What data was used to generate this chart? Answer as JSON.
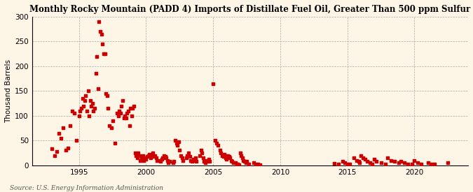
{
  "title": "Monthly Rocky Mountain (PADD 4) Imports of Distillate Fuel Oil, Greater Than 500 ppm Sulfur",
  "ylabel": "Thousand Barrels",
  "source": "Source: U.S. Energy Information Administration",
  "background_color": "#fdf5e6",
  "dot_color": "#cc0000",
  "xlim": [
    1991.5,
    2024
  ],
  "ylim": [
    0,
    300
  ],
  "yticks": [
    0,
    50,
    100,
    150,
    200,
    250,
    300
  ],
  "xticks": [
    1995,
    2000,
    2005,
    2010,
    2015,
    2020
  ],
  "data": [
    [
      1993.0,
      33
    ],
    [
      1993.17,
      20
    ],
    [
      1993.33,
      28
    ],
    [
      1993.5,
      65
    ],
    [
      1993.67,
      55
    ],
    [
      1993.83,
      75
    ],
    [
      1994.0,
      30
    ],
    [
      1994.17,
      35
    ],
    [
      1994.33,
      80
    ],
    [
      1994.5,
      110
    ],
    [
      1994.67,
      105
    ],
    [
      1994.83,
      50
    ],
    [
      1995.0,
      100
    ],
    [
      1995.08,
      110
    ],
    [
      1995.17,
      115
    ],
    [
      1995.25,
      135
    ],
    [
      1995.33,
      120
    ],
    [
      1995.42,
      130
    ],
    [
      1995.5,
      140
    ],
    [
      1995.58,
      110
    ],
    [
      1995.67,
      150
    ],
    [
      1995.75,
      100
    ],
    [
      1995.83,
      130
    ],
    [
      1995.92,
      120
    ],
    [
      1996.0,
      125
    ],
    [
      1996.08,
      110
    ],
    [
      1996.17,
      115
    ],
    [
      1996.25,
      185
    ],
    [
      1996.33,
      220
    ],
    [
      1996.42,
      155
    ],
    [
      1996.5,
      290
    ],
    [
      1996.58,
      270
    ],
    [
      1996.67,
      265
    ],
    [
      1996.75,
      245
    ],
    [
      1996.83,
      225
    ],
    [
      1996.92,
      225
    ],
    [
      1997.0,
      145
    ],
    [
      1997.08,
      140
    ],
    [
      1997.17,
      115
    ],
    [
      1997.25,
      80
    ],
    [
      1997.42,
      75
    ],
    [
      1997.5,
      90
    ],
    [
      1997.67,
      45
    ],
    [
      1997.83,
      105
    ],
    [
      1997.92,
      100
    ],
    [
      1998.0,
      110
    ],
    [
      1998.08,
      105
    ],
    [
      1998.17,
      120
    ],
    [
      1998.25,
      130
    ],
    [
      1998.33,
      95
    ],
    [
      1998.42,
      100
    ],
    [
      1998.5,
      95
    ],
    [
      1998.58,
      105
    ],
    [
      1998.67,
      110
    ],
    [
      1998.75,
      80
    ],
    [
      1998.83,
      115
    ],
    [
      1998.92,
      100
    ],
    [
      1999.0,
      115
    ],
    [
      1999.08,
      120
    ],
    [
      1999.17,
      25
    ],
    [
      1999.25,
      20
    ],
    [
      1999.33,
      15
    ],
    [
      1999.42,
      25
    ],
    [
      1999.5,
      20
    ],
    [
      1999.58,
      10
    ],
    [
      1999.67,
      15
    ],
    [
      1999.75,
      20
    ],
    [
      1999.83,
      10
    ],
    [
      1999.92,
      15
    ],
    [
      2000.0,
      12
    ],
    [
      2000.08,
      18
    ],
    [
      2000.17,
      20
    ],
    [
      2000.25,
      22
    ],
    [
      2000.33,
      15
    ],
    [
      2000.42,
      20
    ],
    [
      2000.5,
      25
    ],
    [
      2000.58,
      18
    ],
    [
      2000.67,
      20
    ],
    [
      2000.75,
      15
    ],
    [
      2000.83,
      10
    ],
    [
      2001.0,
      10
    ],
    [
      2001.08,
      8
    ],
    [
      2001.17,
      12
    ],
    [
      2001.25,
      15
    ],
    [
      2001.33,
      20
    ],
    [
      2001.42,
      18
    ],
    [
      2001.5,
      15
    ],
    [
      2001.58,
      10
    ],
    [
      2001.67,
      5
    ],
    [
      2001.75,
      8
    ],
    [
      2002.0,
      5
    ],
    [
      2002.08,
      8
    ],
    [
      2002.17,
      50
    ],
    [
      2002.25,
      45
    ],
    [
      2002.33,
      40
    ],
    [
      2002.42,
      48
    ],
    [
      2002.5,
      30
    ],
    [
      2002.58,
      20
    ],
    [
      2002.67,
      15
    ],
    [
      2002.75,
      10
    ],
    [
      2003.0,
      15
    ],
    [
      2003.08,
      20
    ],
    [
      2003.17,
      25
    ],
    [
      2003.25,
      18
    ],
    [
      2003.33,
      10
    ],
    [
      2003.42,
      8
    ],
    [
      2003.5,
      12
    ],
    [
      2003.58,
      10
    ],
    [
      2003.67,
      15
    ],
    [
      2003.75,
      8
    ],
    [
      2004.0,
      20
    ],
    [
      2004.08,
      30
    ],
    [
      2004.17,
      25
    ],
    [
      2004.25,
      15
    ],
    [
      2004.33,
      8
    ],
    [
      2004.42,
      5
    ],
    [
      2004.5,
      10
    ],
    [
      2004.58,
      8
    ],
    [
      2004.67,
      12
    ],
    [
      2004.75,
      8
    ],
    [
      2005.0,
      165
    ],
    [
      2005.17,
      50
    ],
    [
      2005.25,
      45
    ],
    [
      2005.33,
      40
    ],
    [
      2005.5,
      30
    ],
    [
      2005.58,
      25
    ],
    [
      2005.67,
      20
    ],
    [
      2005.75,
      18
    ],
    [
      2005.83,
      22
    ],
    [
      2005.92,
      15
    ],
    [
      2006.0,
      12
    ],
    [
      2006.08,
      20
    ],
    [
      2006.17,
      18
    ],
    [
      2006.25,
      15
    ],
    [
      2006.33,
      10
    ],
    [
      2006.42,
      8
    ],
    [
      2006.5,
      5
    ],
    [
      2006.67,
      5
    ],
    [
      2006.75,
      3
    ],
    [
      2006.83,
      2
    ],
    [
      2006.92,
      1
    ],
    [
      2007.0,
      25
    ],
    [
      2007.08,
      20
    ],
    [
      2007.17,
      15
    ],
    [
      2007.25,
      10
    ],
    [
      2007.33,
      8
    ],
    [
      2007.42,
      5
    ],
    [
      2007.5,
      8
    ],
    [
      2007.67,
      3
    ],
    [
      2008.0,
      5
    ],
    [
      2008.17,
      3
    ],
    [
      2008.33,
      2
    ],
    [
      2008.5,
      1
    ],
    [
      2014.0,
      4
    ],
    [
      2014.33,
      2
    ],
    [
      2014.67,
      8
    ],
    [
      2014.83,
      5
    ],
    [
      2015.0,
      3
    ],
    [
      2015.17,
      2
    ],
    [
      2015.5,
      15
    ],
    [
      2015.67,
      10
    ],
    [
      2015.83,
      8
    ],
    [
      2015.92,
      5
    ],
    [
      2016.0,
      20
    ],
    [
      2016.17,
      15
    ],
    [
      2016.33,
      12
    ],
    [
      2016.5,
      8
    ],
    [
      2016.67,
      5
    ],
    [
      2016.83,
      3
    ],
    [
      2017.0,
      12
    ],
    [
      2017.17,
      8
    ],
    [
      2017.5,
      5
    ],
    [
      2017.83,
      3
    ],
    [
      2018.0,
      15
    ],
    [
      2018.25,
      10
    ],
    [
      2018.5,
      8
    ],
    [
      2018.83,
      5
    ],
    [
      2019.0,
      8
    ],
    [
      2019.25,
      5
    ],
    [
      2019.5,
      3
    ],
    [
      2019.83,
      2
    ],
    [
      2020.0,
      10
    ],
    [
      2020.25,
      5
    ],
    [
      2020.5,
      3
    ],
    [
      2021.0,
      5
    ],
    [
      2021.25,
      2
    ],
    [
      2021.5,
      3
    ],
    [
      2022.5,
      5
    ]
  ]
}
